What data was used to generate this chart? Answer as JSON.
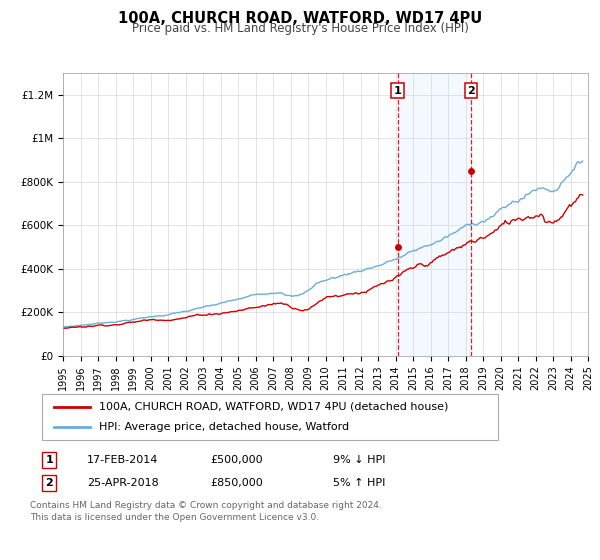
{
  "title": "100A, CHURCH ROAD, WATFORD, WD17 4PU",
  "subtitle": "Price paid vs. HM Land Registry's House Price Index (HPI)",
  "legend_line1": "100A, CHURCH ROAD, WATFORD, WD17 4PU (detached house)",
  "legend_line2": "HPI: Average price, detached house, Watford",
  "footnote1": "Contains HM Land Registry data © Crown copyright and database right 2024.",
  "footnote2": "This data is licensed under the Open Government Licence v3.0.",
  "sale1_date": "17-FEB-2014",
  "sale1_price": "£500,000",
  "sale1_hpi": "9% ↓ HPI",
  "sale1_year": 2014.12,
  "sale1_value": 500000,
  "sale2_date": "25-APR-2018",
  "sale2_price": "£850,000",
  "sale2_hpi": "5% ↑ HPI",
  "sale2_year": 2018.32,
  "sale2_value": 850000,
  "hpi_color": "#6baed6",
  "price_color": "#cc0000",
  "shade_color": "#ddeeff",
  "dashed_line_color": "#cc0000",
  "ylim_max": 1300000,
  "ylabel_ticks": [
    0,
    200000,
    400000,
    600000,
    800000,
    1000000,
    1200000
  ],
  "ylabel_labels": [
    "£0",
    "£200K",
    "£400K",
    "£600K",
    "£800K",
    "£1M",
    "£1.2M"
  ],
  "xmin": 1995,
  "xmax": 2025
}
